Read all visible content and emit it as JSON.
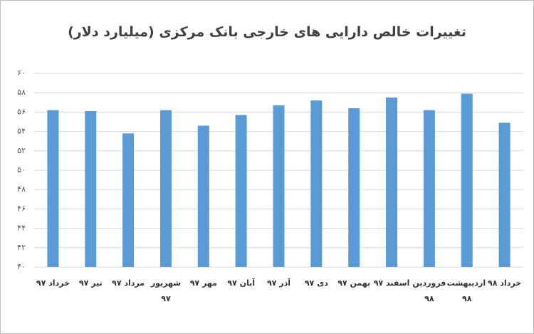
{
  "chart_data": {
    "type": "bar",
    "title": "تغییرات خالص دارایی های خارجی بانک مرکزی (میلیارد دلار)",
    "categories": [
      "خرداد ۹۷",
      "تیر ۹۷",
      "مرداد ۹۷",
      "شهریور ۹۷",
      "مهر ۹۷",
      "آبان ۹۷",
      "آذر ۹۷",
      "دی ۹۷",
      "بهمن ۹۷",
      "اسفند ۹۷",
      "فروردین ۹۸",
      "اردیبهشت ۹۸",
      "خرداد ۹۸"
    ],
    "values": [
      56.2,
      56.1,
      53.8,
      56.2,
      54.6,
      55.7,
      56.7,
      57.2,
      56.4,
      57.5,
      56.2,
      57.9,
      54.9
    ],
    "color": "#5b9bd5",
    "ylim": [
      40,
      60
    ],
    "yticks": [
      {
        "value": 40,
        "label": "۴۰"
      },
      {
        "value": 42,
        "label": "۴۲"
      },
      {
        "value": 44,
        "label": "۴۴"
      },
      {
        "value": 46,
        "label": "۴۶"
      },
      {
        "value": 48,
        "label": "۴۸"
      },
      {
        "value": 50,
        "label": "۵۰"
      },
      {
        "value": 52,
        "label": "۵۲"
      },
      {
        "value": 54,
        "label": "۵۴"
      },
      {
        "value": 56,
        "label": "۵۶"
      },
      {
        "value": 58,
        "label": "۵۸"
      },
      {
        "value": 60,
        "label": "۶۰"
      }
    ],
    "grid": true
  }
}
